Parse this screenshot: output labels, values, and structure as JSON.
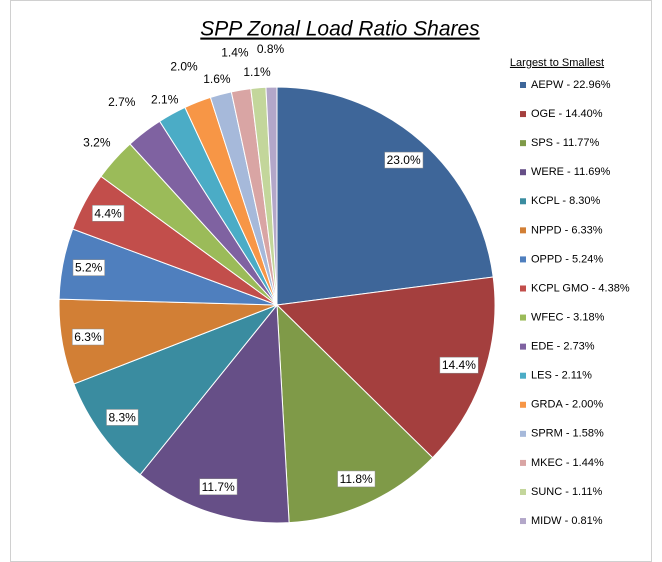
{
  "chart_data": {
    "type": "pie",
    "title": "SPP Zonal Load Ratio Shares",
    "legend_title": "Largest to Smallest",
    "legend": "right",
    "categories": [
      "AEPW - 22.96%",
      "OGE - 14.40%",
      "SPS - 11.77%",
      "WERE - 11.69%",
      "KCPL - 8.30%",
      "NPPD - 6.33%",
      "OPPD - 5.24%",
      "KCPL GMO - 4.38%",
      "WFEC - 3.18%",
      "EDE - 2.73%",
      "LES - 2.11%",
      "GRDA - 2.00%",
      "SPRM - 1.58%",
      "MKEC - 1.44%",
      "SUNC - 1.11%",
      "MIDW - 0.81%"
    ],
    "values": [
      22.96,
      14.4,
      11.77,
      11.69,
      8.3,
      6.33,
      5.24,
      4.38,
      3.18,
      2.73,
      2.11,
      2.0,
      1.58,
      1.44,
      1.11,
      0.81
    ],
    "value_labels": [
      "23.0%",
      "14.4%",
      "11.8%",
      "11.7%",
      "8.3%",
      "6.3%",
      "5.2%",
      "4.4%",
      "3.2%",
      "2.7%",
      "2.1%",
      "2.0%",
      "1.6%",
      "1.4%",
      "1.1%",
      "0.8%"
    ],
    "colors": [
      "#3e6699",
      "#a43f3e",
      "#7f9a48",
      "#664f87",
      "#3a8ca0",
      "#d27f35",
      "#4f7fbe",
      "#c24e4b",
      "#9bbb59",
      "#7f62a1",
      "#4bacc6",
      "#f79646",
      "#a6b9da",
      "#d9a5a4",
      "#c3d69b",
      "#b3a7c9"
    ]
  }
}
